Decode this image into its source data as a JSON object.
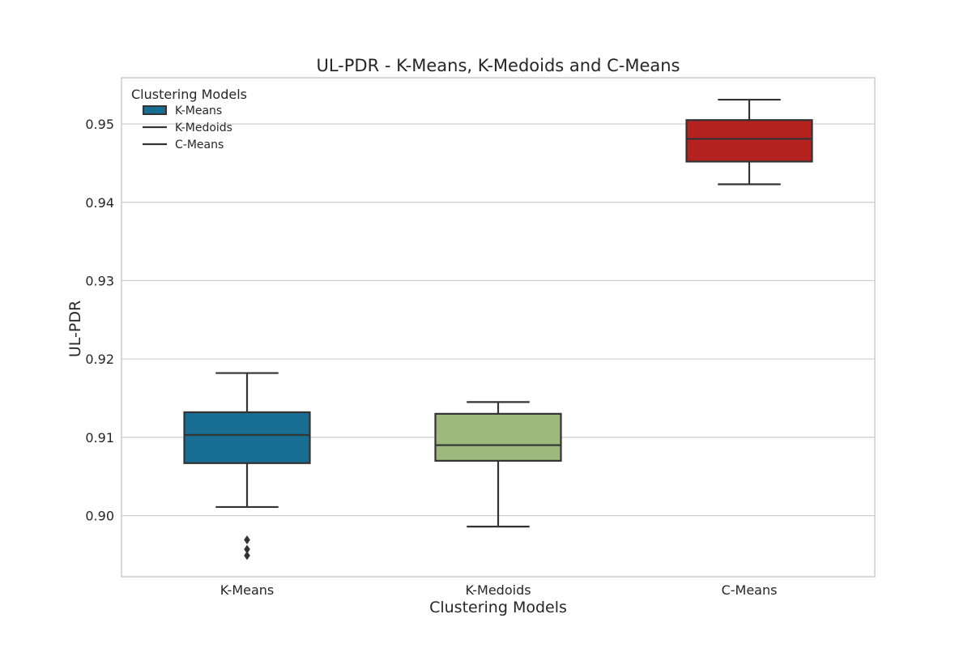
{
  "chart_data": {
    "type": "box",
    "title": "UL-PDR - K-Means, K-Medoids and C-Means",
    "xlabel": "Clustering Models",
    "ylabel": "UL-PDR",
    "ylim": [
      0.8922,
      0.9559
    ],
    "yticks": [
      0.9,
      0.91,
      0.92,
      0.93,
      0.94,
      0.95
    ],
    "ytick_labels": [
      "0.90",
      "0.91",
      "0.92",
      "0.93",
      "0.94",
      "0.95"
    ],
    "grid": "horizontal",
    "legend": {
      "title": "Clustering Models",
      "placement": "top-left",
      "entries": [
        "K-Means",
        "K-Medoids",
        "C-Means"
      ]
    },
    "categories": [
      "K-Means",
      "K-Medoids",
      "C-Means"
    ],
    "series": [
      {
        "name": "K-Means",
        "color": "#176d92",
        "whisker_low": 0.9011,
        "q1": 0.9067,
        "median": 0.9103,
        "q3": 0.9132,
        "whisker_high": 0.9182,
        "outliers": [
          0.8969,
          0.8957,
          0.8949
        ]
      },
      {
        "name": "K-Medoids",
        "color": "#9dba7c",
        "whisker_low": 0.8986,
        "q1": 0.907,
        "median": 0.909,
        "q3": 0.913,
        "whisker_high": 0.9145,
        "outliers": []
      },
      {
        "name": "C-Means",
        "color": "#b5221f",
        "whisker_low": 0.9423,
        "q1": 0.9452,
        "median": 0.9481,
        "q3": 0.9505,
        "whisker_high": 0.9531,
        "outliers": []
      }
    ]
  }
}
